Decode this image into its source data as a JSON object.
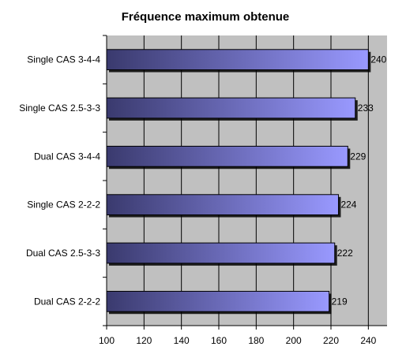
{
  "chart_data": {
    "type": "bar",
    "orientation": "horizontal",
    "title": "Fréquence maximum obtenue",
    "xlabel": "",
    "ylabel": "",
    "categories": [
      "Single CAS 3-4-4",
      "Single CAS 2.5-3-3",
      "Dual CAS 3-4-4",
      "Single CAS 2-2-2",
      "Dual CAS 2.5-3-3",
      "Dual CAS 2-2-2"
    ],
    "values": [
      240,
      233,
      229,
      224,
      222,
      219
    ],
    "data_labels": [
      "240",
      "233",
      "229",
      "224",
      "222",
      "219"
    ],
    "xlim": [
      100,
      250
    ],
    "xticks": [
      100,
      120,
      140,
      160,
      180,
      200,
      220,
      240
    ],
    "xtick_labels": [
      "100",
      "120",
      "140",
      "160",
      "180",
      "200",
      "220",
      "240"
    ],
    "grid": true,
    "legend": "none",
    "colors": {
      "plot_background": "#c0c0c0",
      "bar_start": "#3a3a6e",
      "bar_end": "#9999ff",
      "grid": "#000000"
    }
  }
}
